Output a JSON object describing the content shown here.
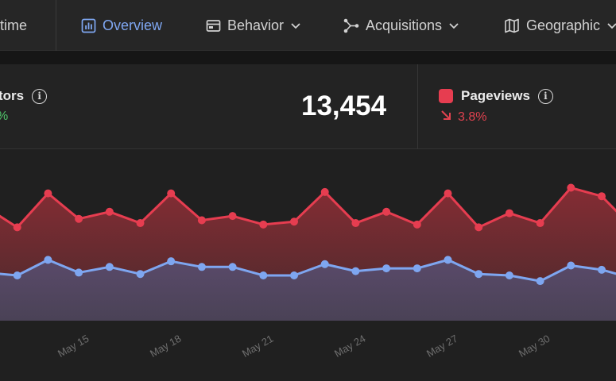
{
  "nav": {
    "tabs": [
      {
        "label": "time",
        "active": false,
        "icon": "none"
      },
      {
        "label": "Overview",
        "active": true,
        "icon": "bar-chart-icon"
      },
      {
        "label": "Behavior",
        "active": false,
        "icon": "window-icon"
      },
      {
        "label": "Acquisitions",
        "active": false,
        "icon": "network-icon"
      },
      {
        "label": "Geographic",
        "active": false,
        "icon": "map-icon"
      }
    ]
  },
  "stats": {
    "visitors": {
      "label": "tors",
      "delta": "%"
    },
    "value": "13,454",
    "pageviews": {
      "label": "Pageviews",
      "delta": "3.8%"
    }
  },
  "colors": {
    "accent": "#7fa7f2",
    "pageviews": "#e63d50",
    "visitors": "#7ea6f0",
    "positive": "#4fc46a",
    "negative": "#e0424f"
  },
  "chart_data": {
    "type": "area",
    "x_labels": [
      "May 15",
      "May 18",
      "May 21",
      "May 24",
      "May 27",
      "May 30"
    ],
    "series": [
      {
        "name": "Pageviews",
        "values": [
          80,
          66,
          90,
          72,
          77,
          69,
          90,
          71,
          74,
          68,
          70,
          91,
          69,
          77,
          68,
          90,
          66,
          76,
          69,
          94,
          88,
          66
        ]
      },
      {
        "name": "Visitors",
        "values": [
          34,
          32,
          43,
          34,
          38,
          33,
          42,
          38,
          38,
          32,
          32,
          40,
          35,
          37,
          37,
          43,
          33,
          32,
          28,
          39,
          36,
          30
        ]
      }
    ],
    "ylim": [
      0,
      110
    ]
  }
}
